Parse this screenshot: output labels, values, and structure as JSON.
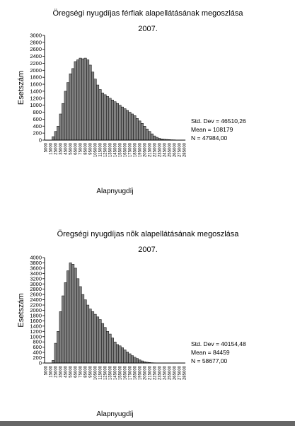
{
  "chart_data": [
    {
      "type": "histogram",
      "title": [
        "Öregségi nyugdíjas férfiak alapellátásának megoszlása",
        "2007."
      ],
      "ylabel": "Esetszám",
      "xlabel": "Alapnyugdíj",
      "annotations": [
        "Std. Dev = 46510,26",
        "Mean = 108179",
        "N = 47984,00"
      ],
      "color": "#808080",
      "bins": [
        2500,
        7500,
        12500,
        17500,
        22500,
        27500,
        32500,
        37500,
        42500,
        47500,
        52500,
        57500,
        62500,
        67500,
        72500,
        77500,
        82500,
        87500,
        92500,
        97500,
        102500,
        107500,
        112500,
        117500,
        122500,
        127500,
        132500,
        137500,
        142500,
        147500,
        152500,
        157500,
        162500,
        167500,
        172500,
        177500,
        182500,
        187500,
        192500,
        197500,
        202500,
        207500,
        212500,
        217500,
        222500,
        227500,
        232500,
        237500,
        242500,
        247500,
        252500,
        257500,
        262500,
        267500,
        272500,
        277500,
        282500,
        287500
      ],
      "counts": [
        0,
        0,
        0,
        100,
        250,
        400,
        750,
        1050,
        1400,
        1650,
        1900,
        2050,
        2250,
        2300,
        2350,
        2330,
        2350,
        2300,
        2150,
        1950,
        1750,
        1580,
        1450,
        1350,
        1300,
        1250,
        1200,
        1150,
        1100,
        1050,
        1000,
        950,
        900,
        850,
        800,
        750,
        700,
        620,
        550,
        480,
        400,
        320,
        250,
        180,
        120,
        80,
        50,
        35,
        25,
        20,
        15,
        10,
        8,
        5,
        3,
        2,
        1
      ],
      "xlim": [
        2500,
        287500
      ],
      "xticks": [
        5000,
        15000,
        25000,
        35000,
        45000,
        55000,
        65000,
        75000,
        85000,
        95000,
        105000,
        115000,
        125000,
        135000,
        145000,
        155000,
        165000,
        175000,
        185000,
        195000,
        205000,
        215000,
        225000,
        235000,
        245000,
        255000,
        265000,
        275000,
        285000
      ],
      "ylim": [
        0,
        3000
      ],
      "yticks": [
        0,
        200,
        400,
        600,
        800,
        1000,
        1200,
        1400,
        1600,
        1800,
        2000,
        2200,
        2400,
        2600,
        2800,
        3000
      ]
    },
    {
      "type": "histogram",
      "title": [
        "Öregségi nyugdíjas nõk alapellátásának megoszlása",
        "2007."
      ],
      "ylabel": "Esetszám",
      "xlabel": "Alapnyugdíj",
      "annotations": [
        "Std. Dev = 40154,48",
        "Mean = 84459",
        "N = 58677,00"
      ],
      "color": "#808080",
      "bins": [
        2500,
        7500,
        12500,
        17500,
        22500,
        27500,
        32500,
        37500,
        42500,
        47500,
        52500,
        57500,
        62500,
        67500,
        72500,
        77500,
        82500,
        87500,
        92500,
        97500,
        102500,
        107500,
        112500,
        117500,
        122500,
        127500,
        132500,
        137500,
        142500,
        147500,
        152500,
        157500,
        162500,
        167500,
        172500,
        177500,
        182500,
        187500,
        192500,
        197500,
        202500,
        207500,
        212500,
        217500,
        222500,
        227500,
        232500,
        237500,
        242500,
        247500,
        252500,
        257500,
        262500,
        267500,
        272500,
        277500,
        282500,
        287500
      ],
      "counts": [
        0,
        0,
        0,
        100,
        750,
        1200,
        1950,
        2550,
        3050,
        3500,
        3800,
        3750,
        3600,
        3200,
        2900,
        2600,
        2400,
        2200,
        2050,
        1950,
        1850,
        1750,
        1650,
        1500,
        1350,
        1200,
        1100,
        950,
        800,
        700,
        650,
        580,
        500,
        420,
        350,
        280,
        220,
        170,
        120,
        80,
        50,
        30,
        20,
        12,
        8,
        5,
        3,
        2,
        1,
        1,
        0,
        0,
        0,
        0,
        0,
        0,
        0
      ],
      "xlim": [
        2500,
        287500
      ],
      "xticks": [
        5000,
        15000,
        25000,
        35000,
        45000,
        55000,
        65000,
        75000,
        85000,
        95000,
        105000,
        115000,
        125000,
        135000,
        145000,
        155000,
        165000,
        175000,
        185000,
        195000,
        205000,
        215000,
        225000,
        235000,
        245000,
        255000,
        265000,
        275000,
        285000
      ],
      "ylim": [
        0,
        4000
      ],
      "yticks": [
        0,
        200,
        400,
        600,
        800,
        1000,
        1200,
        1400,
        1600,
        1800,
        2000,
        2200,
        2400,
        2600,
        2800,
        3000,
        3200,
        3400,
        3600,
        3800,
        4000
      ]
    }
  ]
}
